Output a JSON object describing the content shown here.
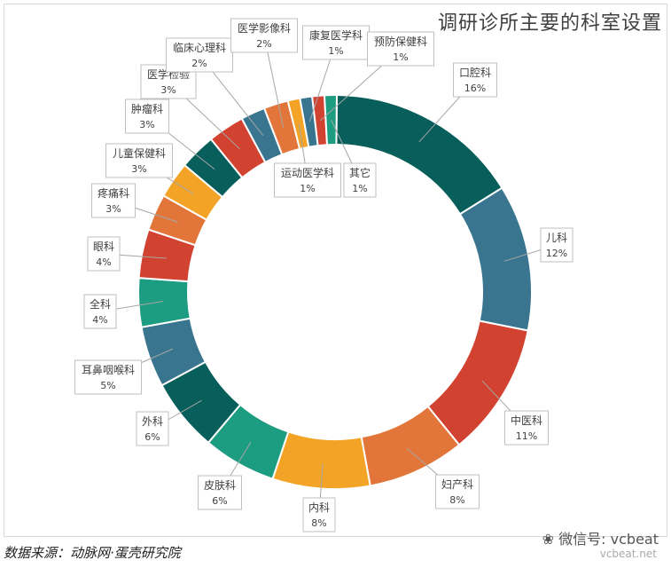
{
  "chart_data": {
    "type": "pie",
    "style": "donut",
    "title": "调研诊所主要的科室设置",
    "slices": [
      {
        "label": "口腔科",
        "value": 16,
        "pct": "16%",
        "color": "#075e5a"
      },
      {
        "label": "儿科",
        "value": 12,
        "pct": "12%",
        "color": "#3a7590"
      },
      {
        "label": "中医科",
        "value": 11,
        "pct": "11%",
        "color": "#d24231"
      },
      {
        "label": "妇产科",
        "value": 8,
        "pct": "8%",
        "color": "#e2763a"
      },
      {
        "label": "内科",
        "value": 8,
        "pct": "8%",
        "color": "#f3a426"
      },
      {
        "label": "皮肤科",
        "value": 6,
        "pct": "6%",
        "color": "#1c9c80"
      },
      {
        "label": "外科",
        "value": 6,
        "pct": "6%",
        "color": "#075e5a"
      },
      {
        "label": "耳鼻咽喉科",
        "value": 5,
        "pct": "5%",
        "color": "#3a7590"
      },
      {
        "label": "全科",
        "value": 4,
        "pct": "4%",
        "color": "#1c9c80"
      },
      {
        "label": "眼科",
        "value": 4,
        "pct": "4%",
        "color": "#d24231"
      },
      {
        "label": "疼痛科",
        "value": 3,
        "pct": "3%",
        "color": "#e2763a"
      },
      {
        "label": "儿童保健科",
        "value": 3,
        "pct": "3%",
        "color": "#f3a426"
      },
      {
        "label": "肿瘤科",
        "value": 3,
        "pct": "3%",
        "color": "#075e5a"
      },
      {
        "label": "医学检验",
        "value": 3,
        "pct": "3%",
        "color": "#d24231"
      },
      {
        "label": "临床心理科",
        "value": 2,
        "pct": "2%",
        "color": "#3a7590"
      },
      {
        "label": "医学影像科",
        "value": 2,
        "pct": "2%",
        "color": "#e2763a"
      },
      {
        "label": "运动医学科",
        "value": 1,
        "pct": "1%",
        "color": "#f3a426"
      },
      {
        "label": "康复医学科",
        "value": 1,
        "pct": "1%",
        "color": "#3a7590"
      },
      {
        "label": "预防保健科",
        "value": 1,
        "pct": "1%",
        "color": "#d24231"
      },
      {
        "label": "其它",
        "value": 1,
        "pct": "1%",
        "color": "#1c9c80"
      }
    ]
  },
  "source": "数据来源：动脉网·蛋壳研究院",
  "watermark": "微信号: vcbeat",
  "watermark_url": "vcbeat.net"
}
